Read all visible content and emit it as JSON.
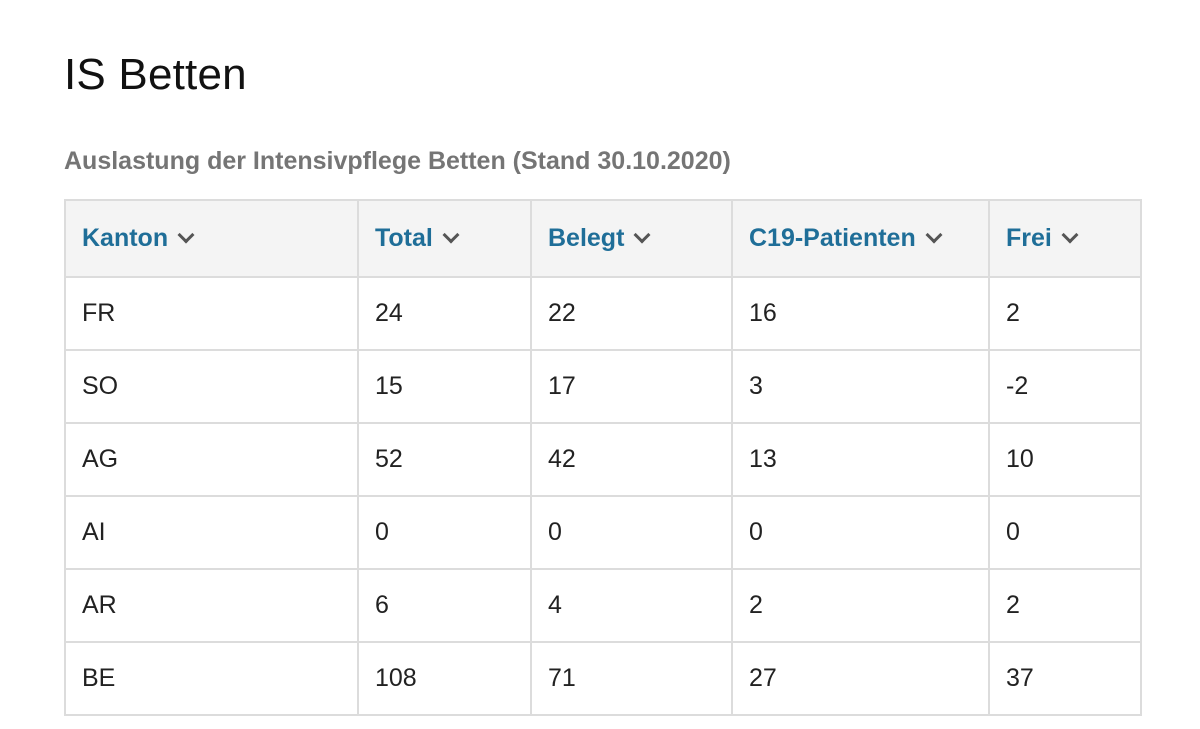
{
  "page": {
    "title": "IS Betten",
    "caption": "Auslastung der Intensivpflege Betten (Stand 30.10.2020)"
  },
  "table": {
    "headers": [
      {
        "label": "Kanton",
        "icon": "chevron-down-icon"
      },
      {
        "label": "Total",
        "icon": "chevron-down-icon"
      },
      {
        "label": "Belegt",
        "icon": "chevron-down-icon"
      },
      {
        "label": "C19-Patienten",
        "icon": "chevron-down-icon"
      },
      {
        "label": "Frei",
        "icon": "chevron-down-icon"
      }
    ],
    "rows": [
      [
        "FR",
        "24",
        "22",
        "16",
        "2"
      ],
      [
        "SO",
        "15",
        "17",
        "3",
        "-2"
      ],
      [
        "AG",
        "52",
        "42",
        "13",
        "10"
      ],
      [
        "AI",
        "0",
        "0",
        "0",
        "0"
      ],
      [
        "AR",
        "6",
        "4",
        "2",
        "2"
      ],
      [
        "BE",
        "108",
        "71",
        "27",
        "37"
      ]
    ]
  },
  "colors": {
    "header_text": "#1f6e98",
    "header_bg": "#f4f4f4",
    "caption_text": "#757575",
    "border": "#dcdcdc"
  }
}
